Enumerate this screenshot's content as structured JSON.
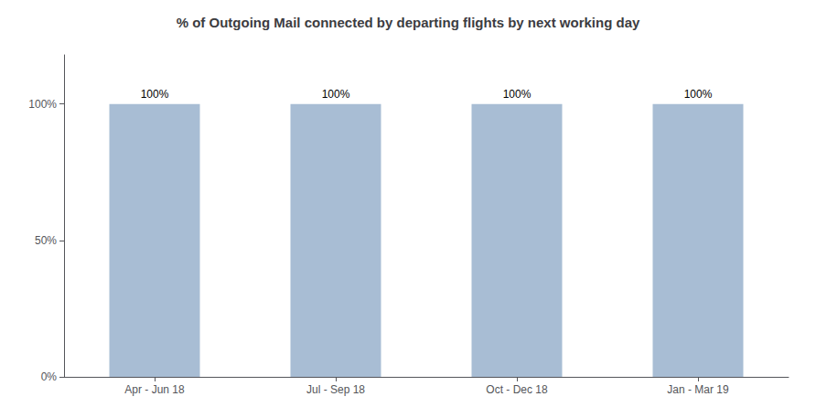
{
  "chart_data": {
    "type": "bar",
    "title": "% of Outgoing Mail connected by departing flights by next working day",
    "categories": [
      "Apr - Jun 18",
      "Jul - Sep 18",
      "Oct - Dec 18",
      "Jan - Mar 19"
    ],
    "values": [
      100,
      100,
      100,
      100
    ],
    "value_labels": [
      "100%",
      "100%",
      "100%",
      "100%"
    ],
    "data_labels": true,
    "color": "#a8bdd4",
    "ylim": [
      0,
      118
    ],
    "yticks": [
      {
        "value": 0,
        "label": "0%"
      },
      {
        "value": 50,
        "label": "50%"
      },
      {
        "value": 100,
        "label": "100%"
      }
    ],
    "grid": false
  }
}
